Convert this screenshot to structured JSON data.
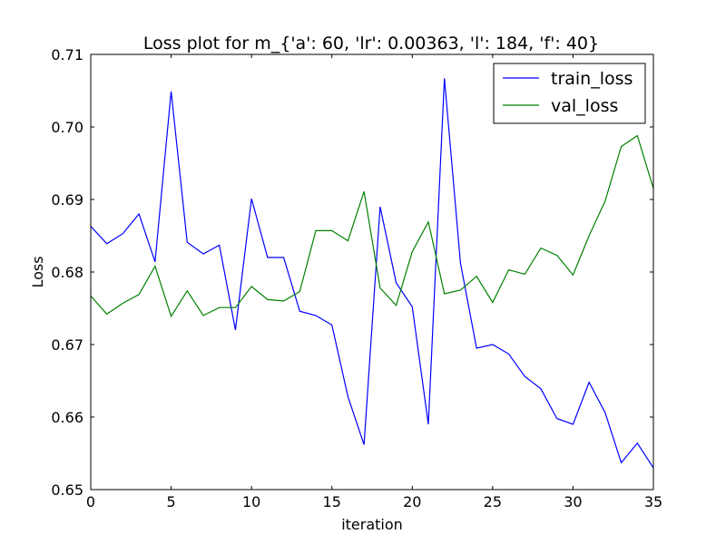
{
  "chart_data": {
    "type": "line",
    "title": "Loss plot for m_{'a': 60, 'lr': 0.00363, 'l': 184, 'f': 40}",
    "xlabel": "iteration",
    "ylabel": "Loss",
    "xlim": [
      0,
      35
    ],
    "ylim": [
      0.65,
      0.71
    ],
    "xticks": [
      0,
      5,
      10,
      15,
      20,
      25,
      30,
      35
    ],
    "xtick_labels": [
      "0",
      "5",
      "10",
      "15",
      "20",
      "25",
      "30",
      "35"
    ],
    "yticks": [
      0.65,
      0.66,
      0.67,
      0.68,
      0.69,
      0.7,
      0.71
    ],
    "ytick_labels": [
      "0.65",
      "0.66",
      "0.67",
      "0.68",
      "0.69",
      "0.70",
      "0.71"
    ],
    "grid": false,
    "legend_position": "top-right",
    "x": [
      0,
      1,
      2,
      3,
      4,
      5,
      6,
      7,
      8,
      9,
      10,
      11,
      12,
      13,
      14,
      15,
      16,
      17,
      18,
      19,
      20,
      21,
      22,
      23,
      24,
      25,
      26,
      27,
      28,
      29,
      30,
      31,
      32,
      33,
      34,
      35
    ],
    "series": [
      {
        "name": "train_loss",
        "color": "#0000ff",
        "values": [
          0.6863,
          0.6839,
          0.6853,
          0.688,
          0.6814,
          0.7049,
          0.6841,
          0.6825,
          0.6837,
          0.672,
          0.6901,
          0.682,
          0.682,
          0.6746,
          0.674,
          0.6727,
          0.6628,
          0.6562,
          0.689,
          0.6785,
          0.6752,
          0.659,
          0.7067,
          0.6812,
          0.6695,
          0.67,
          0.6687,
          0.6656,
          0.6639,
          0.6598,
          0.659,
          0.6648,
          0.6606,
          0.6537,
          0.6564,
          0.653
        ]
      },
      {
        "name": "val_loss",
        "color": "#008000",
        "values": [
          0.6767,
          0.6742,
          0.6757,
          0.6769,
          0.6808,
          0.6739,
          0.6774,
          0.674,
          0.6751,
          0.6751,
          0.678,
          0.6762,
          0.676,
          0.6773,
          0.6857,
          0.6857,
          0.6843,
          0.6911,
          0.6778,
          0.6754,
          0.6828,
          0.6869,
          0.677,
          0.6775,
          0.6794,
          0.6758,
          0.6803,
          0.6797,
          0.6833,
          0.6823,
          0.6796,
          0.685,
          0.6898,
          0.6973,
          0.6988,
          0.6915
        ]
      }
    ]
  }
}
